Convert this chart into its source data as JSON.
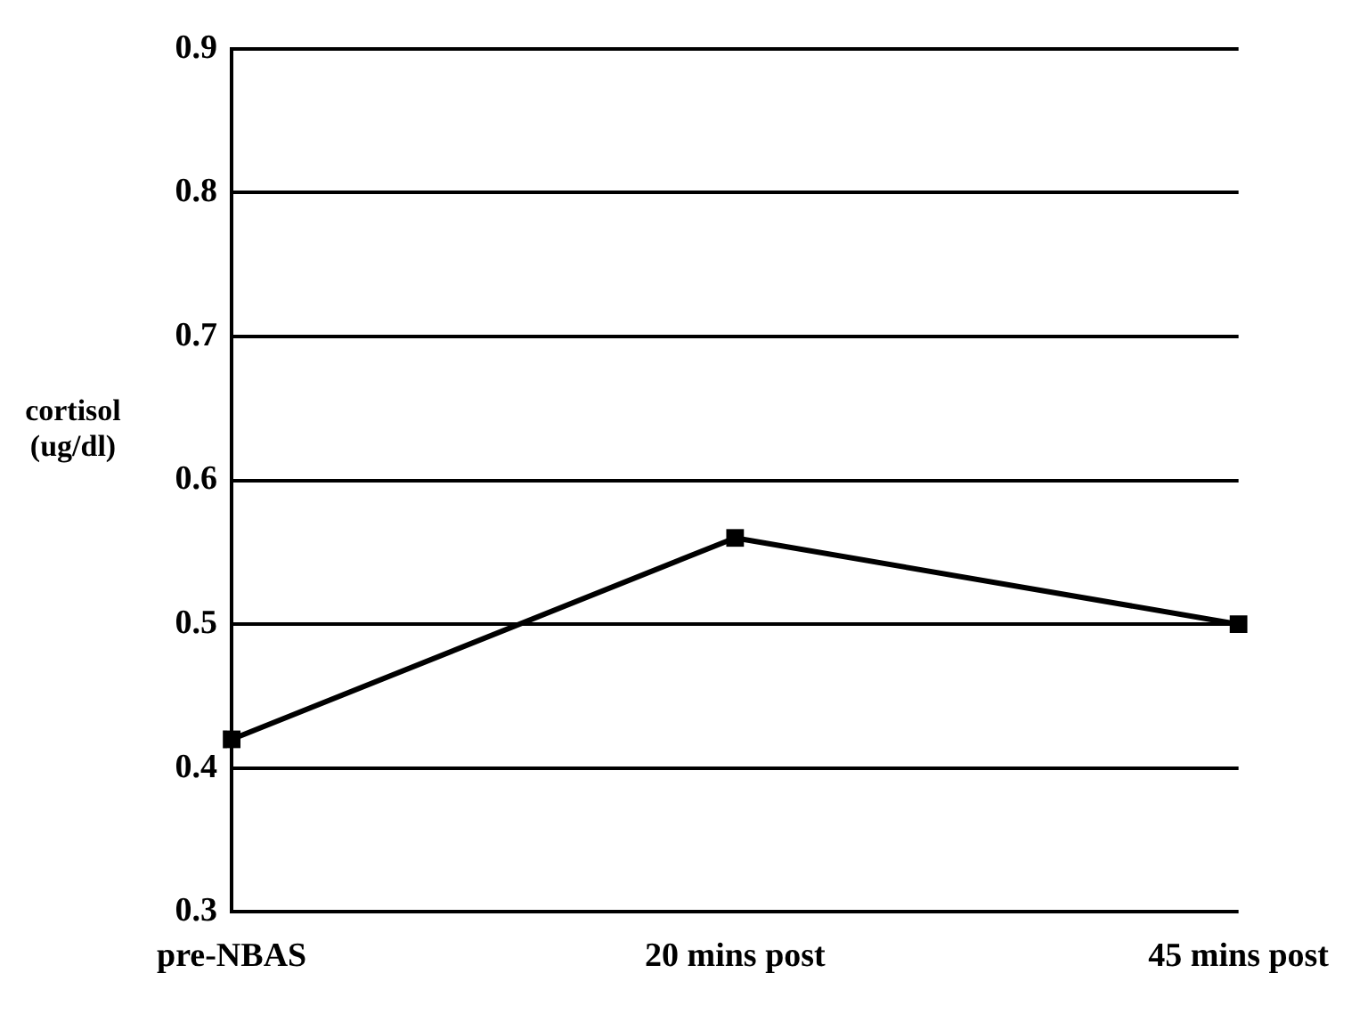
{
  "chart_data": {
    "type": "line",
    "ylabel": "cortisol (ug/dl)",
    "categories": [
      "pre-NBAS",
      "20 mins post",
      "45 mins post"
    ],
    "series": [
      {
        "color": "#000000",
        "values": [
          0.42,
          0.56,
          0.5
        ]
      }
    ],
    "ylim": [
      0.3,
      0.9
    ],
    "yticks": [
      0.3,
      0.4,
      0.5,
      0.6,
      0.7,
      0.8,
      0.9
    ],
    "grid": "y",
    "legend": false,
    "marker": "square",
    "line_style": "solid"
  }
}
